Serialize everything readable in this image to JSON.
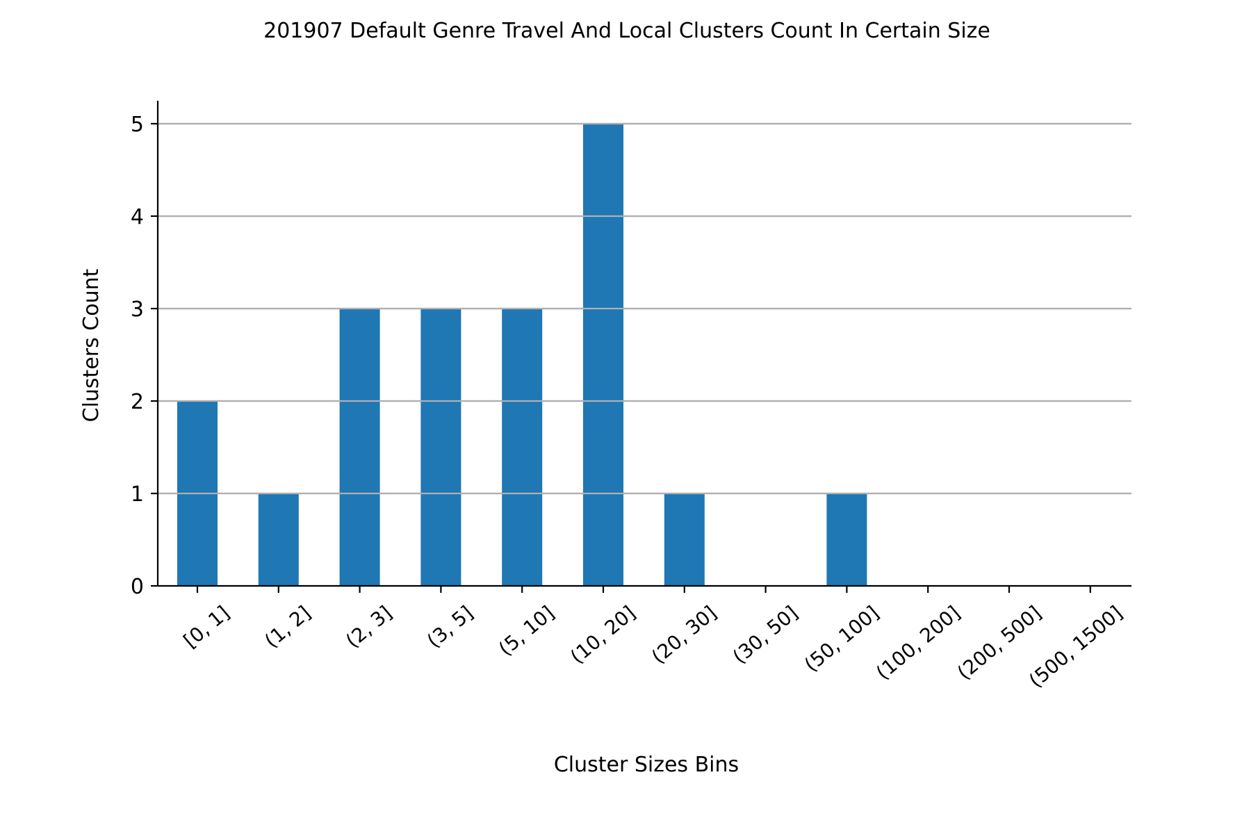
{
  "chart_data": {
    "type": "bar",
    "title": "201907 Default Genre Travel And Local Clusters Count In Certain Size",
    "xlabel": "Cluster Sizes Bins",
    "ylabel": "Clusters Count",
    "categories": [
      "[0, 1]",
      "(1, 2]",
      "(2, 3]",
      "(3, 5]",
      "(5, 10]",
      "(10, 20]",
      "(20, 30]",
      "(30, 50]",
      "(50, 100]",
      "(100, 200]",
      "(200, 500]",
      "(500, 1500]"
    ],
    "values": [
      2,
      1,
      3,
      3,
      3,
      5,
      1,
      0,
      1,
      0,
      0,
      0
    ],
    "ylim": [
      0,
      5.25
    ],
    "yticks": [
      "0",
      "1",
      "2",
      "3",
      "4",
      "5"
    ],
    "grid": "horizontal",
    "colors": {
      "bar": "#1f77b4",
      "grid": "#b0b0b0",
      "axis": "#000000"
    }
  }
}
